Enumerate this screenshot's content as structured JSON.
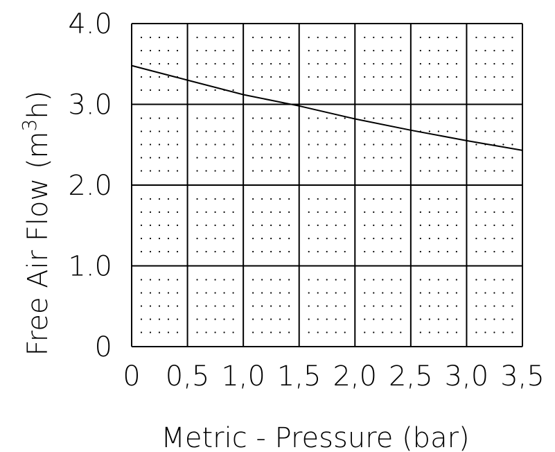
{
  "chart_data": {
    "type": "line",
    "xlabel": "Metric - Pressure (bar)",
    "ylabel_main": "Free Air Flow (m",
    "ylabel_sup": "3",
    "ylabel_end": "h)",
    "x_tick_labels": [
      "0",
      "0,5",
      "1,0",
      "1,5",
      "2,0",
      "2,5",
      "3,0",
      "3,5"
    ],
    "y_tick_labels": [
      "0",
      "1.0",
      "2.0",
      "3.0",
      "4.0"
    ],
    "xlim": [
      0,
      3.5
    ],
    "ylim": [
      0,
      4.0
    ],
    "grid": true,
    "minor_dots": true,
    "series": [
      {
        "x": [
          0,
          0.5,
          1.0,
          1.5,
          2.0,
          2.5,
          3.0,
          3.5
        ],
        "y": [
          3.48,
          3.3,
          3.12,
          2.98,
          2.82,
          2.68,
          2.55,
          2.43
        ]
      }
    ],
    "colors": {
      "line": "#000000",
      "grid": "#000000",
      "text": "#000000"
    }
  }
}
